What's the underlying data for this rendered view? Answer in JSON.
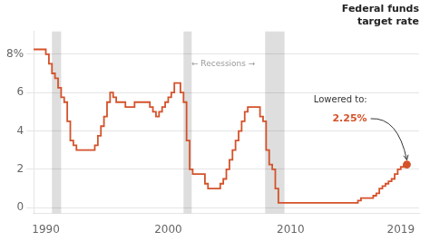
{
  "chart_data": {
    "type": "line",
    "title": "Federal funds\ntarget rate",
    "line_style": "step",
    "color": "#d4522a",
    "x": [
      1989.0,
      1989.5,
      1990.0,
      1990.25,
      1990.5,
      1990.75,
      1991.0,
      1991.25,
      1991.5,
      1991.75,
      1992.0,
      1992.25,
      1992.5,
      1993.0,
      1993.5,
      1994.0,
      1994.25,
      1994.5,
      1994.75,
      1995.0,
      1995.25,
      1995.5,
      1995.75,
      1996.0,
      1996.5,
      1997.0,
      1997.25,
      1998.0,
      1998.5,
      1998.75,
      1999.0,
      1999.25,
      1999.5,
      1999.75,
      2000.0,
      2000.25,
      2000.5,
      2000.75,
      2001.0,
      2001.25,
      2001.5,
      2001.75,
      2002.0,
      2002.25,
      2002.5,
      2003.0,
      2003.25,
      2003.5,
      2004.0,
      2004.25,
      2004.5,
      2004.75,
      2005.0,
      2005.25,
      2005.5,
      2005.75,
      2006.0,
      2006.25,
      2006.5,
      2006.75,
      2007.0,
      2007.25,
      2007.5,
      2007.75,
      2008.0,
      2008.25,
      2008.5,
      2008.75,
      2009.0,
      2009.25,
      2009.5,
      2010.0,
      2011.0,
      2012.0,
      2013.0,
      2014.0,
      2015.0,
      2015.5,
      2015.75,
      2016.0,
      2016.5,
      2016.75,
      2017.0,
      2017.25,
      2017.5,
      2017.75,
      2018.0,
      2018.25,
      2018.5,
      2018.75,
      2019.0,
      2019.25,
      2019.5
    ],
    "values": [
      8.25,
      8.25,
      8.0,
      7.5,
      7.0,
      6.75,
      6.25,
      5.75,
      5.5,
      4.5,
      3.5,
      3.25,
      3.0,
      3.0,
      3.0,
      3.25,
      3.75,
      4.25,
      4.75,
      5.5,
      6.0,
      5.75,
      5.5,
      5.5,
      5.25,
      5.25,
      5.5,
      5.5,
      5.25,
      5.0,
      4.75,
      5.0,
      5.25,
      5.5,
      5.75,
      6.0,
      6.5,
      6.5,
      6.0,
      5.5,
      3.5,
      2.0,
      1.75,
      1.75,
      1.75,
      1.25,
      1.0,
      1.0,
      1.0,
      1.25,
      1.5,
      2.0,
      2.5,
      3.0,
      3.5,
      4.0,
      4.5,
      5.0,
      5.25,
      5.25,
      5.25,
      5.25,
      4.75,
      4.5,
      3.0,
      2.25,
      2.0,
      1.0,
      0.25,
      0.25,
      0.25,
      0.25,
      0.25,
      0.25,
      0.25,
      0.25,
      0.25,
      0.375,
      0.5,
      0.5,
      0.5,
      0.625,
      0.75,
      1.0,
      1.125,
      1.25,
      1.375,
      1.5,
      1.75,
      2.0,
      2.125,
      2.25,
      2.25
    ],
    "xlim": [
      1989.0,
      2020.5
    ],
    "ylim": [
      -0.3,
      9.2
    ],
    "xticks": [
      1990,
      2000,
      2010,
      2019
    ],
    "yticks": [
      0,
      2,
      4,
      6,
      {
        "value": 8,
        "label": "8%"
      }
    ],
    "grid": true,
    "recessions": {
      "color": "#dedede",
      "periods": [
        [
          1990.5,
          1991.25
        ],
        [
          2001.25,
          2001.92
        ],
        [
          2007.92,
          2009.5
        ]
      ]
    },
    "annotations": [
      {
        "text": "← Recessions →",
        "x": 2004.5,
        "y": 7.5
      },
      {
        "text": "Lowered to:"
      },
      {
        "text": "2.25%",
        "color": "#d4522a"
      }
    ]
  }
}
